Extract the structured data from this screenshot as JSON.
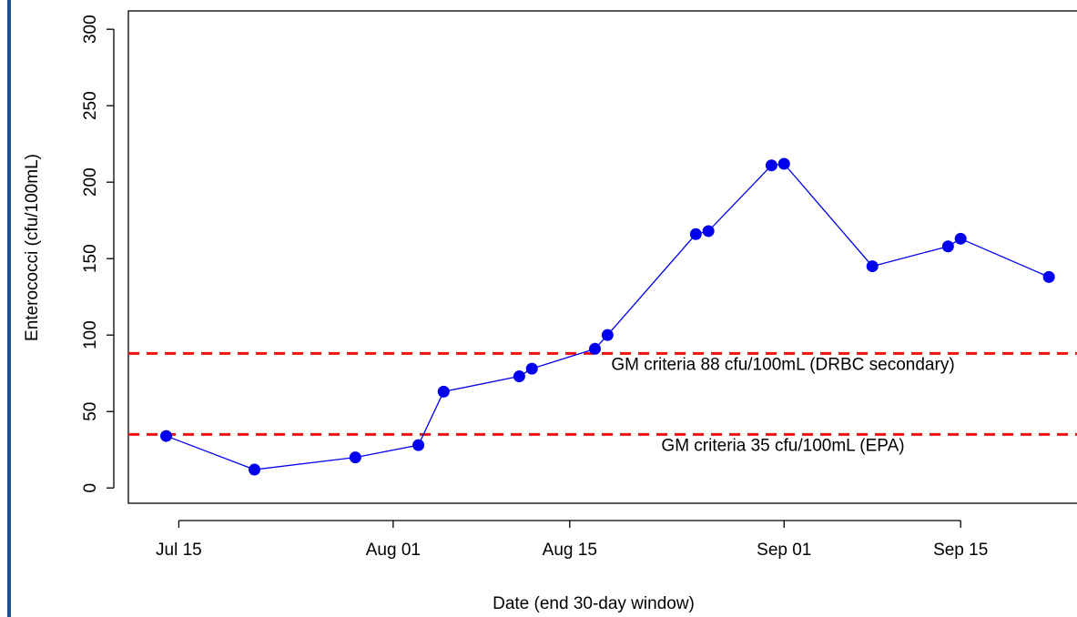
{
  "chart_data": {
    "type": "line",
    "xlabel": "Date (end 30-day window)",
    "ylabel": "Enterococci (cfu/100mL)",
    "x": [
      "Jul 14",
      "Jul 21",
      "Jul 29",
      "Aug 03",
      "Aug 05",
      "Aug 11",
      "Aug 12",
      "Aug 17",
      "Aug 18",
      "Aug 25",
      "Aug 26",
      "Aug 31",
      "Sep 01",
      "Sep 08",
      "Sep 14",
      "Sep 15",
      "Sep 22"
    ],
    "series": [
      {
        "color": "#0000ee",
        "values": [
          34,
          12,
          20,
          28,
          63,
          73,
          78,
          91,
          100,
          166,
          168,
          211,
          212,
          145,
          158,
          163,
          138
        ]
      }
    ],
    "xlim": [
      "Jul 11",
      "Sep 23"
    ],
    "xticks": [
      "Jul 15",
      "Aug 01",
      "Aug 15",
      "Sep 01",
      "Sep 15"
    ],
    "ylim": [
      -10,
      312
    ],
    "yticks": [
      0,
      50,
      100,
      150,
      200,
      250,
      300
    ],
    "reference_lines": [
      {
        "value": 88,
        "label": "GM criteria 88 cfu/100mL (DRBC secondary)",
        "color": "#ee1111"
      },
      {
        "value": 35,
        "label": "GM criteria 35 cfu/100mL (EPA)",
        "color": "#ee1111"
      }
    ]
  }
}
